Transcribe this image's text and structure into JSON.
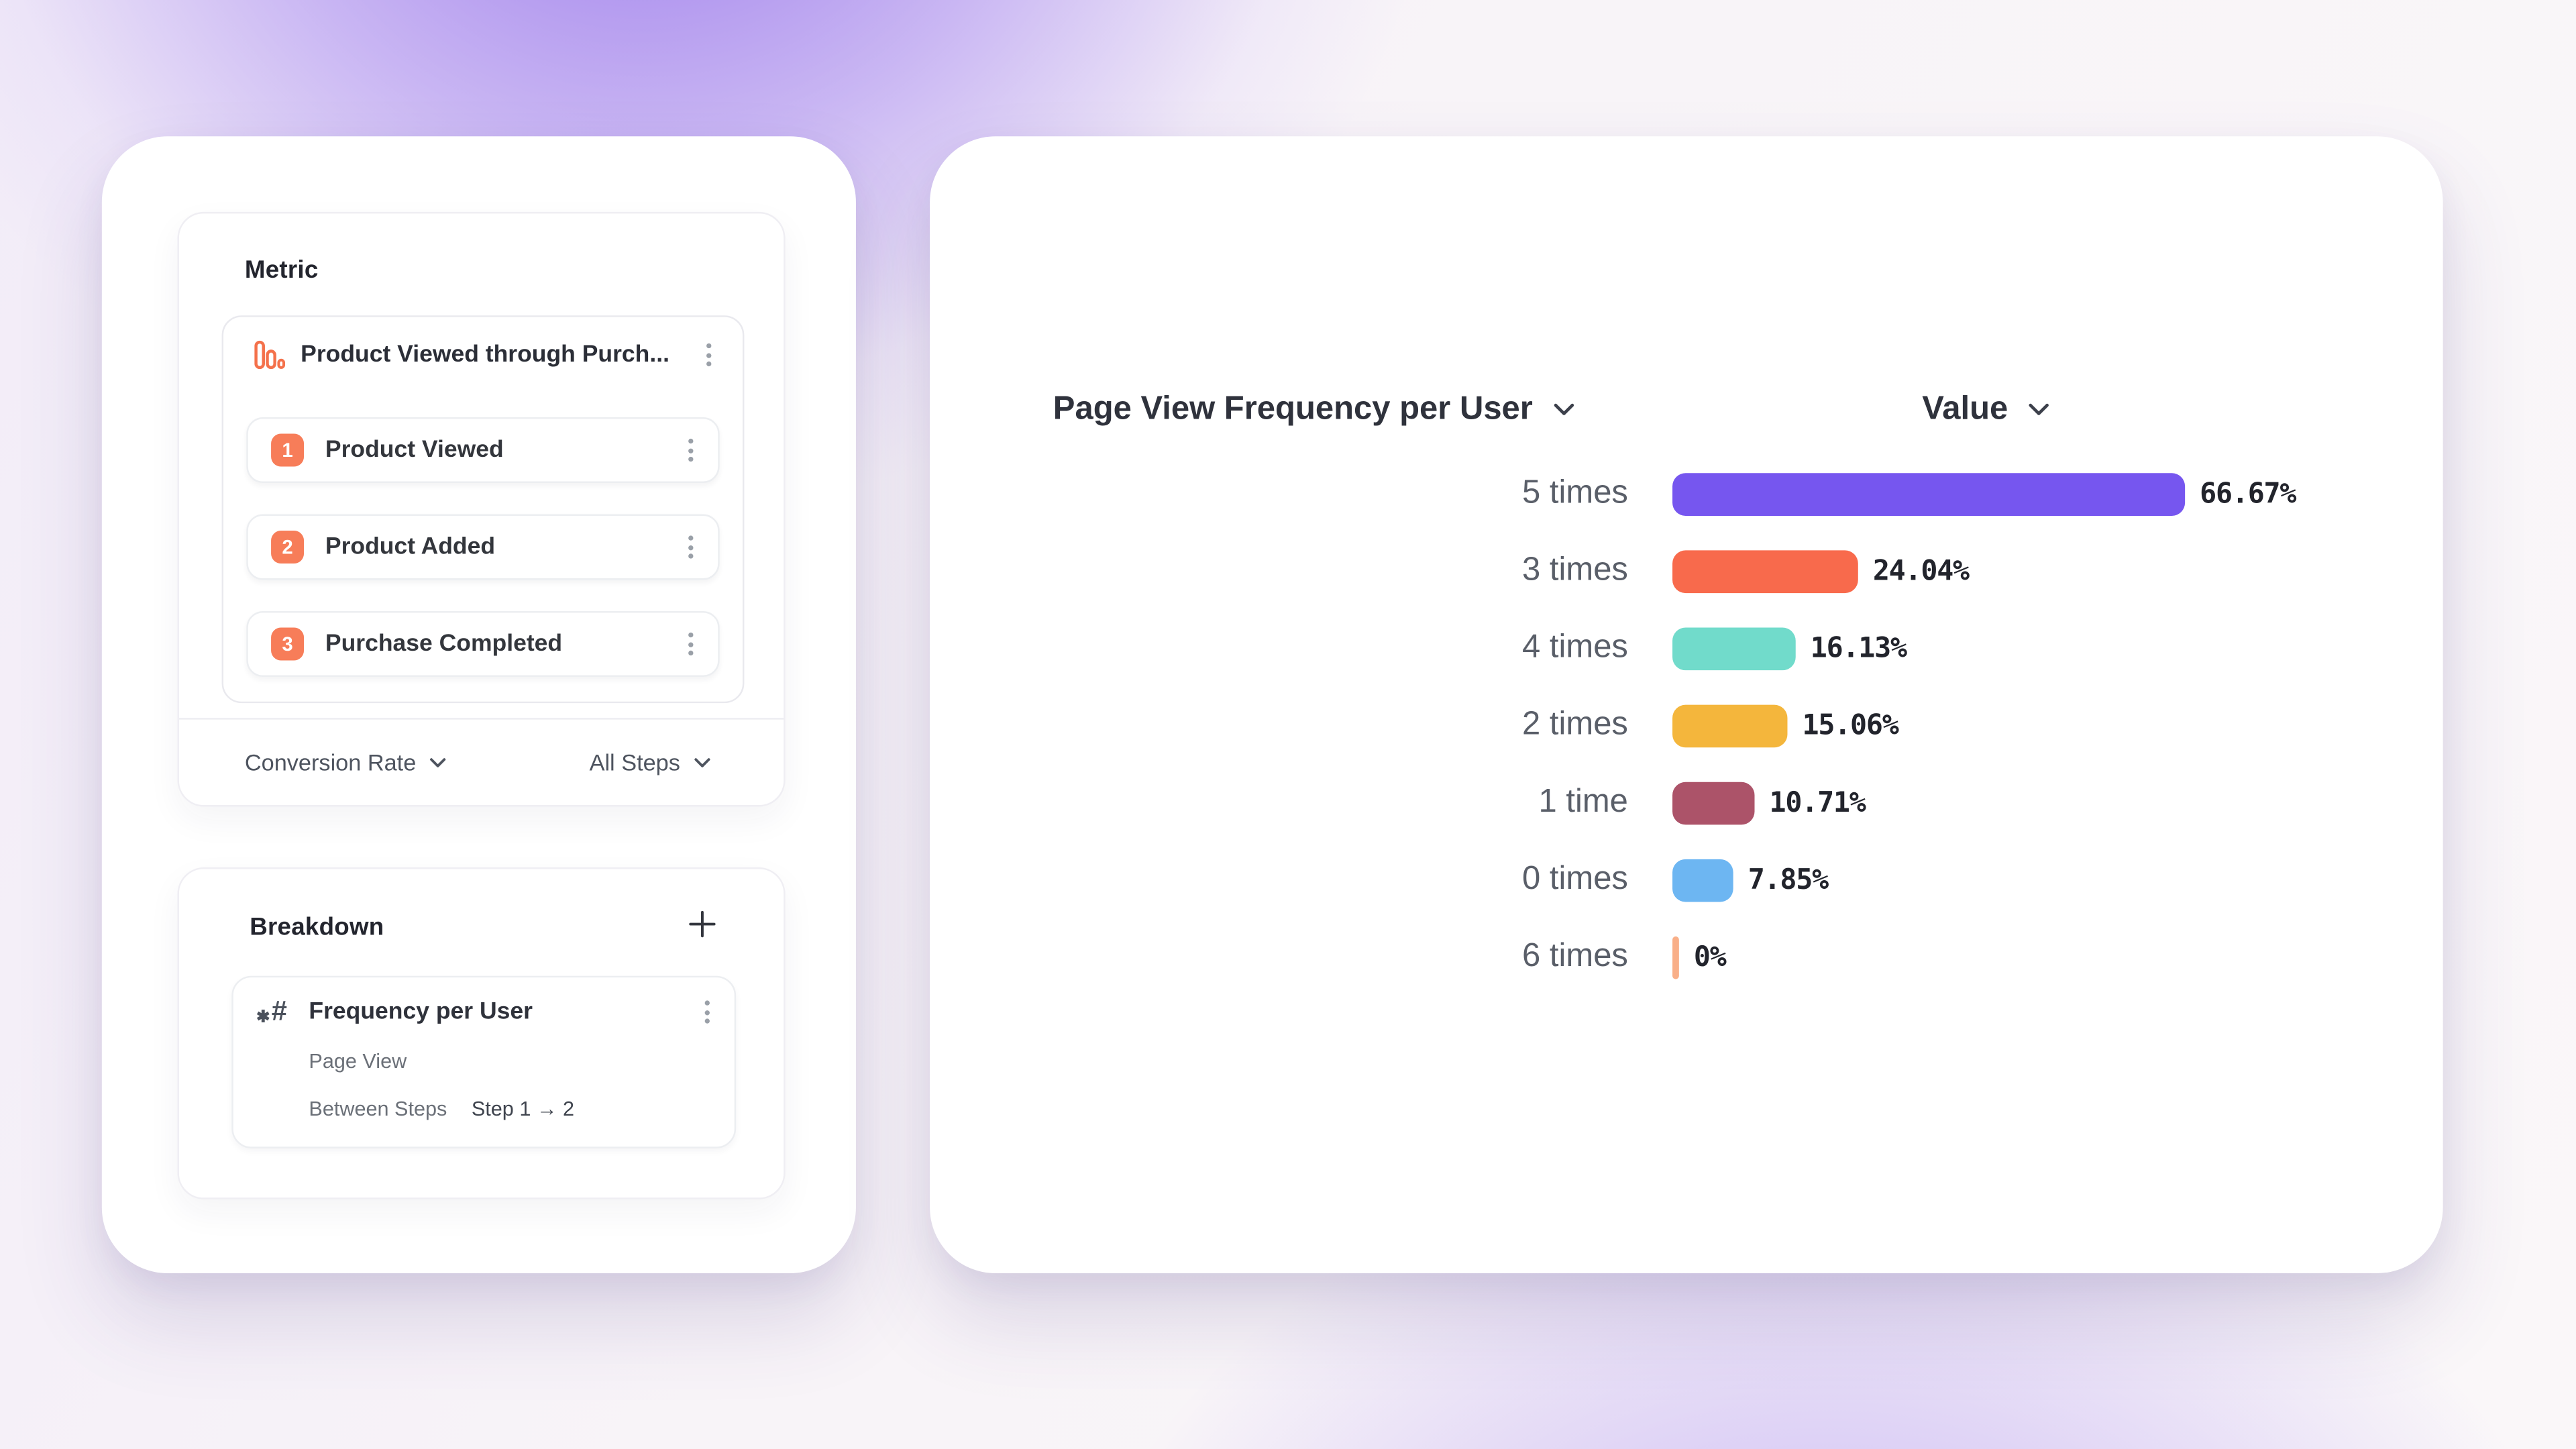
{
  "metric": {
    "title": "Metric",
    "funnel": {
      "name": "Product Viewed through Purch...",
      "steps": [
        {
          "number": "1",
          "label": "Product Viewed"
        },
        {
          "number": "2",
          "label": "Product Added"
        },
        {
          "number": "3",
          "label": "Purchase Completed"
        }
      ]
    },
    "footer": {
      "conversion_label": "Conversion Rate",
      "steps_label": "All Steps"
    }
  },
  "breakdown": {
    "title": "Breakdown",
    "item": {
      "name": "Frequency per User",
      "event": "Page View",
      "between_label": "Between Steps",
      "between_value": "Step 1 → 2"
    }
  },
  "chart_data": {
    "type": "bar",
    "orientation": "horizontal",
    "title": "Page View Frequency per User",
    "value_header": "Value",
    "categories": [
      "5 times",
      "3 times",
      "4 times",
      "2 times",
      "1 time",
      "0 times",
      "6 times"
    ],
    "values": [
      66.67,
      24.04,
      16.13,
      15.06,
      10.71,
      7.85,
      0
    ],
    "value_labels": [
      "66.67%",
      "24.04%",
      "16.13%",
      "15.06%",
      "10.71%",
      "7.85%",
      "0%"
    ],
    "bar_colors": [
      "#7656EF",
      "#F86A4C",
      "#71DBCB",
      "#F4B63C",
      "#AC5369",
      "#6DB6F2",
      "#F9AF88"
    ],
    "xlim": [
      0,
      66.67
    ],
    "grid": false,
    "legend": "none"
  },
  "colors": {
    "icon_orange": "#F4714B",
    "badge_orange": "#F77D59"
  }
}
